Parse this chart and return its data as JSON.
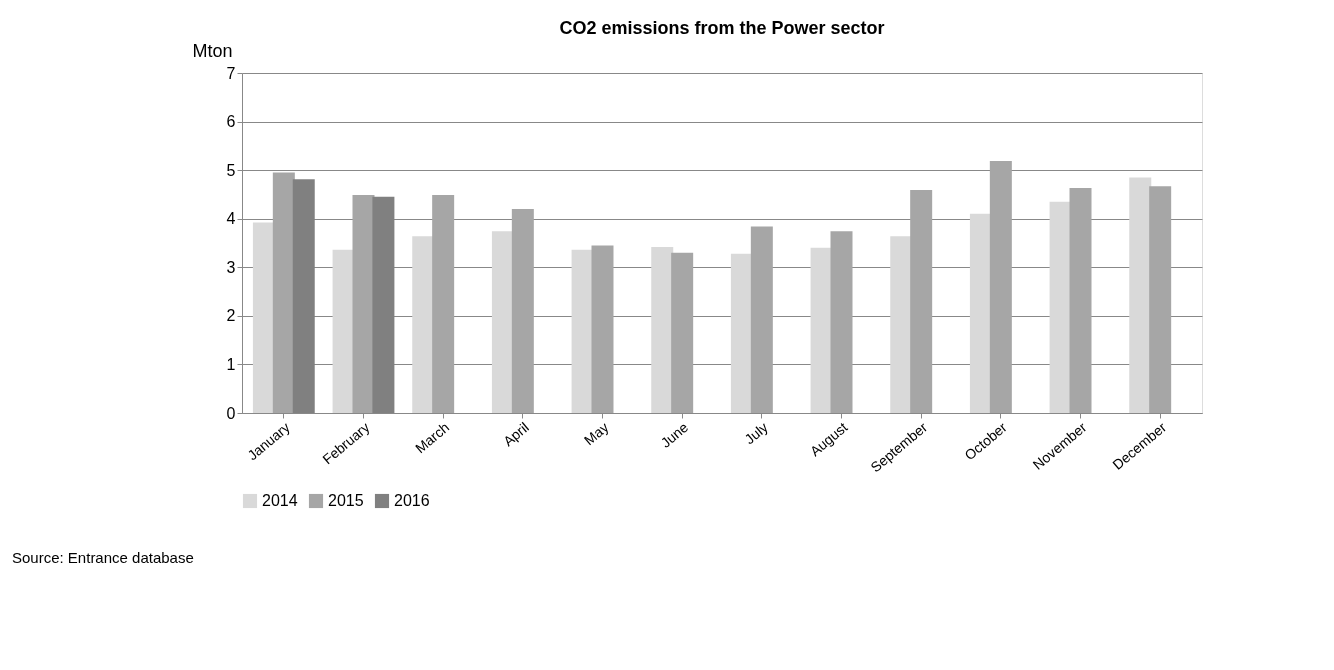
{
  "chart_data": {
    "type": "bar",
    "title": "CO2 emissions from the Power sector",
    "ylabel": "Mton",
    "categories": [
      "January",
      "February",
      "March",
      "April",
      "May",
      "June",
      "July",
      "August",
      "September",
      "October",
      "November",
      "December"
    ],
    "series": [
      {
        "name": "2014",
        "color": "#d9d9d9",
        "values": [
          3.92,
          3.36,
          3.64,
          3.74,
          3.36,
          3.42,
          3.28,
          3.4,
          3.64,
          4.1,
          4.35,
          4.85
        ]
      },
      {
        "name": "2015",
        "color": "#a6a6a6",
        "values": [
          4.95,
          4.49,
          4.49,
          4.2,
          3.45,
          3.3,
          3.84,
          3.74,
          4.59,
          5.19,
          4.63,
          4.67
        ]
      },
      {
        "name": "2016",
        "color": "#808080",
        "values": [
          4.81,
          4.45,
          null,
          null,
          null,
          null,
          null,
          null,
          null,
          null,
          null,
          null
        ]
      }
    ],
    "ylim": [
      0,
      7
    ],
    "yticks": [
      0,
      1,
      2,
      3,
      4,
      5,
      6,
      7
    ],
    "grid": "y",
    "legend": "bottom",
    "annotations": [
      "Source: Entrance database"
    ]
  }
}
